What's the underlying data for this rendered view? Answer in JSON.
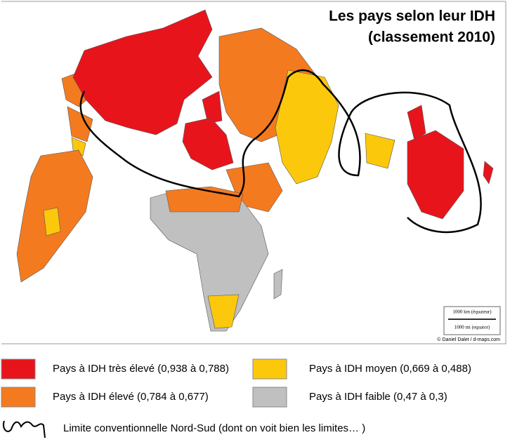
{
  "title": [
    "Les pays selon leur IDH",
    "(classement 2010)"
  ],
  "scale": [
    "1000 km (équateur)",
    "1000 mi (equator)"
  ],
  "credit": "© Daniel Dalet / d-maps.com",
  "legend": [
    {
      "label": "Pays à IDH très élevé (0,938 à 0,788)",
      "color": "#e8141c"
    },
    {
      "label": "Pays à IDH élevé (0,784 à 0,677)",
      "color": "#f47a20"
    },
    {
      "label": "Pays à IDH moyen (0,669 à 0,488)",
      "color": "#fcc80c"
    },
    {
      "label": "Pays à IDH faible (0,47 à 0,3)",
      "color": "#c0c0c0"
    }
  ],
  "boundary_label": "Limite conventionnelle Nord-Sud (dont on voit bien les limites… )"
}
